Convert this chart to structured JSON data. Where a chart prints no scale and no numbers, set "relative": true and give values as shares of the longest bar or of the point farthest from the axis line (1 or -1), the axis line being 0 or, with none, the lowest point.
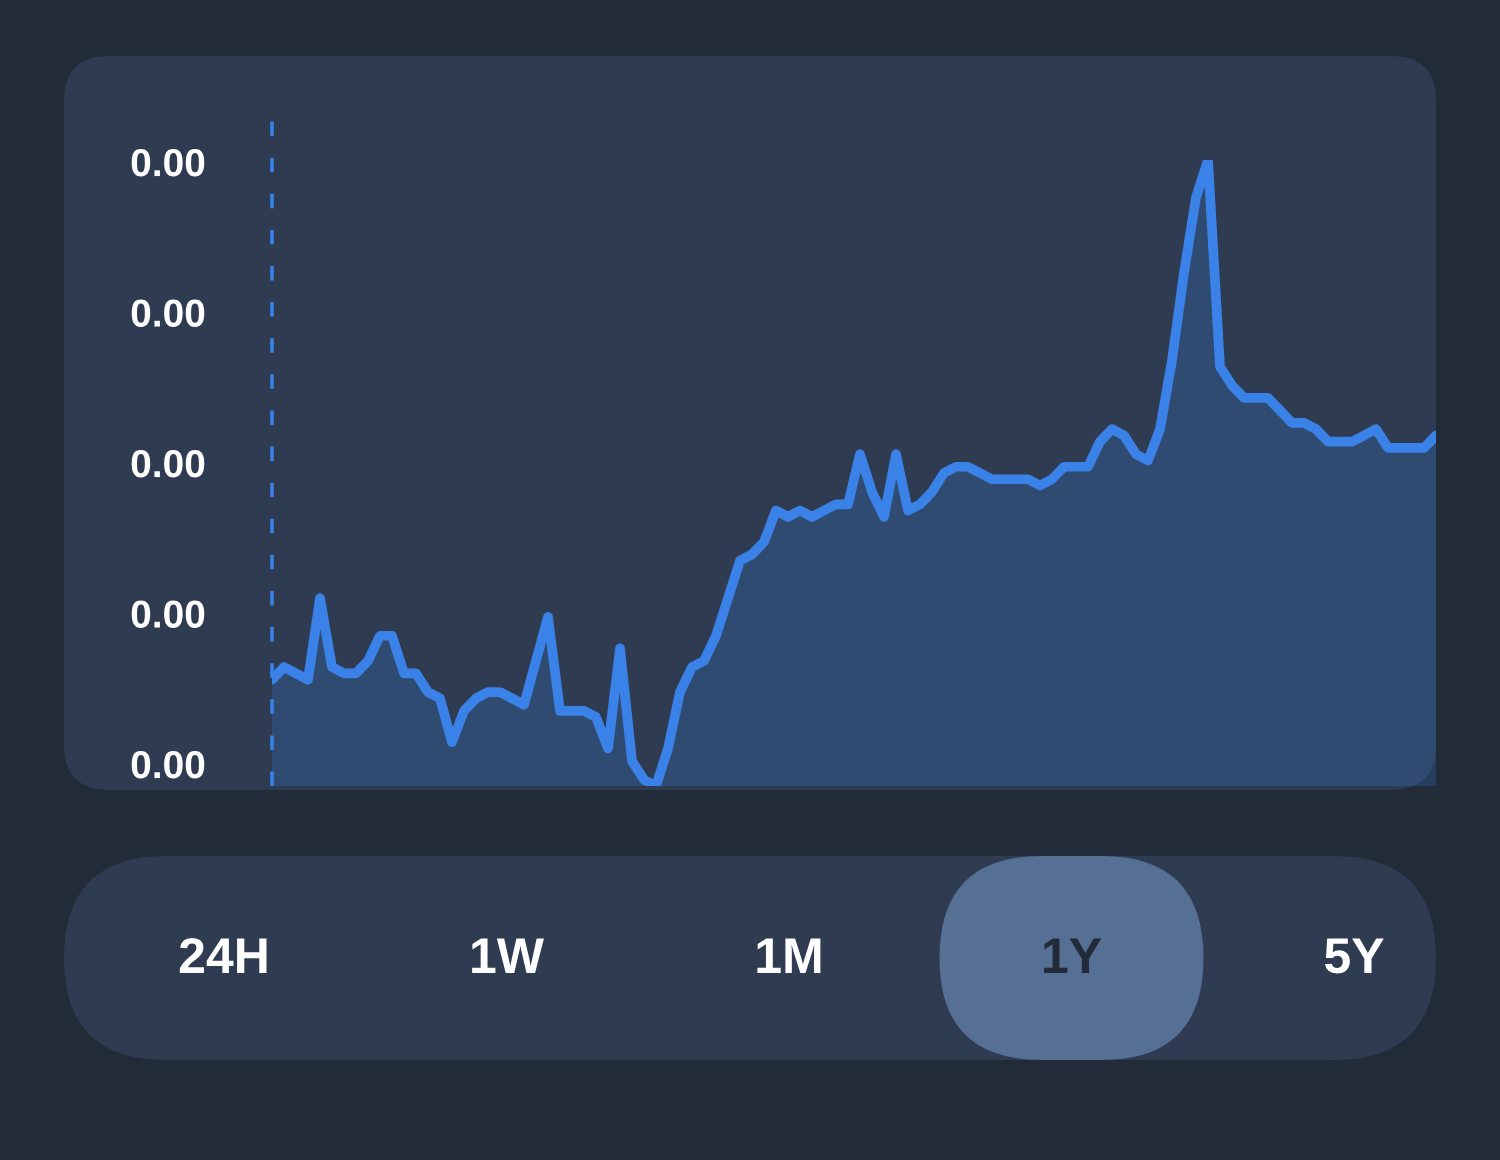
{
  "chart_data": {
    "type": "area",
    "relative": true,
    "categories": [
      null,
      null,
      null,
      null,
      null,
      null,
      null,
      null,
      null,
      null,
      null,
      null,
      null,
      null,
      null,
      null,
      null,
      null,
      null,
      null,
      null,
      null,
      null,
      null,
      null,
      null,
      null,
      null,
      null,
      null,
      null,
      null,
      null,
      null,
      null,
      null,
      null,
      null,
      null,
      null,
      null,
      null,
      null,
      null,
      null,
      null,
      null,
      null,
      null,
      null,
      null,
      null,
      null,
      null,
      null,
      null,
      null,
      null,
      null,
      null,
      null,
      null,
      null,
      null,
      null,
      null,
      null,
      null,
      null,
      null,
      null,
      null,
      null,
      null,
      null,
      null,
      null,
      null,
      null,
      null,
      null,
      null,
      null,
      null,
      null,
      null,
      null,
      null,
      null,
      null,
      null,
      null,
      null,
      null,
      null,
      null,
      null,
      null
    ],
    "series": [
      {
        "color": "#3b82e8",
        "values": [
          0.17,
          0.19,
          0.18,
          0.17,
          0.3,
          0.19,
          0.18,
          0.18,
          0.2,
          0.24,
          0.24,
          0.18,
          0.18,
          0.15,
          0.14,
          0.07,
          0.12,
          0.14,
          0.15,
          0.15,
          0.14,
          0.13,
          0.2,
          0.27,
          0.12,
          0.12,
          0.12,
          0.11,
          0.06,
          0.22,
          0.04,
          0.01,
          0,
          0.06,
          0.15,
          0.19,
          0.2,
          0.24,
          0.3,
          0.36,
          0.37,
          0.39,
          0.44,
          0.43,
          0.44,
          0.43,
          0.44,
          0.45,
          0.45,
          0.53,
          0.47,
          0.43,
          0.53,
          0.44,
          0.45,
          0.47,
          0.5,
          0.51,
          0.51,
          0.5,
          0.49,
          0.49,
          0.49,
          0.49,
          0.48,
          0.49,
          0.51,
          0.51,
          0.51,
          0.55,
          0.57,
          0.56,
          0.53,
          0.52,
          0.57,
          0.68,
          0.82,
          0.94,
          1,
          0.67,
          0.64,
          0.62,
          0.62,
          0.62,
          0.6,
          0.58,
          0.58,
          0.57,
          0.55,
          0.55,
          0.55,
          0.56,
          0.57,
          0.54,
          0.54,
          0.54,
          0.54,
          0.56
        ]
      }
    ],
    "annotations": [
      "0.00",
      "0.00",
      "0.00",
      "0.00",
      "0.00",
      "24H",
      "1W",
      "1M",
      "1Y",
      "5Y"
    ]
  }
}
